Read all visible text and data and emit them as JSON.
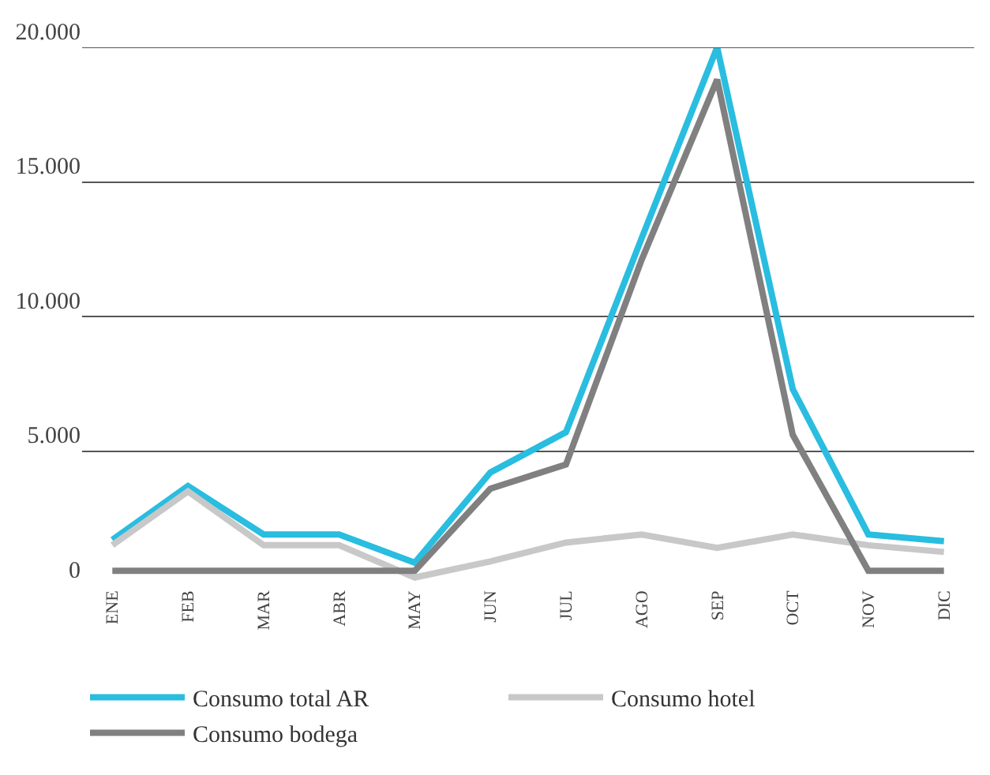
{
  "chart_data": {
    "type": "line",
    "categories": [
      "ENE",
      "FEB",
      "MAR",
      "ABR",
      "MAY",
      "JUN",
      "JUL",
      "AGO",
      "SEP",
      "OCT",
      "NOV",
      "DIC"
    ],
    "series": [
      {
        "name": "Consumo total AR",
        "color": "#29bde0",
        "values": [
          1700,
          3700,
          1900,
          1900,
          850,
          4200,
          5700,
          12900,
          20000,
          7300,
          1900,
          1650
        ]
      },
      {
        "name": "Consumo hotel",
        "color": "#c8c8c8",
        "values": [
          1500,
          3500,
          1500,
          1500,
          300,
          900,
          1600,
          1900,
          1400,
          1900,
          1500,
          1250
        ]
      },
      {
        "name": "Consumo bodega",
        "color": "#808080",
        "values": [
          550,
          550,
          550,
          550,
          550,
          3600,
          4500,
          12100,
          18800,
          5600,
          550,
          550
        ]
      }
    ],
    "ylim": [
      0,
      20000
    ],
    "yticks": [
      0,
      {
        "value": 5000,
        "label": "5.000"
      },
      {
        "value": 10000,
        "label": "10.000"
      },
      {
        "value": 15000,
        "label": "15.000"
      },
      {
        "value": 20000,
        "label": "20.000"
      }
    ],
    "grid": "y",
    "legend": "bottom",
    "marker": "none",
    "line_style": "solid"
  }
}
